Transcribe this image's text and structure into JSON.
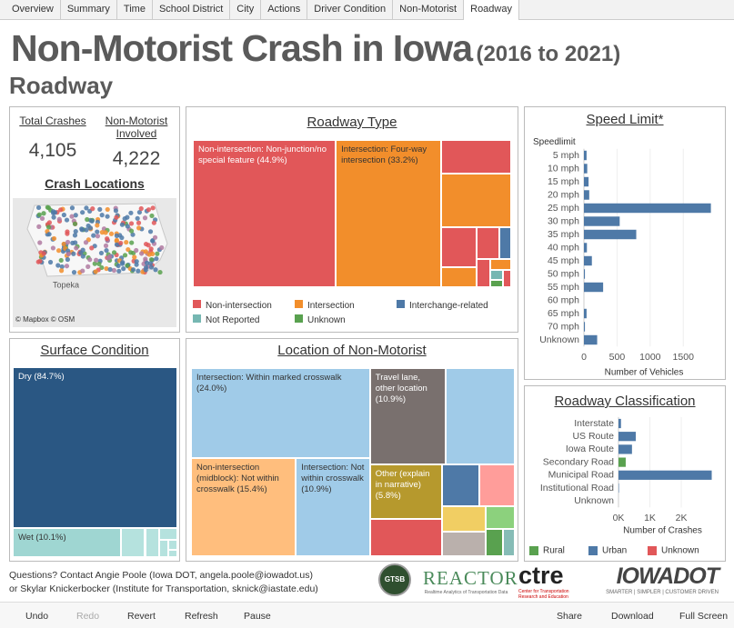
{
  "tabs": [
    "Overview",
    "Summary",
    "Time",
    "School District",
    "City",
    "Actions",
    "Driver Condition",
    "Non-Motorist",
    "Roadway"
  ],
  "active_tab": 8,
  "header": {
    "title": "Non-Motorist Crash in Iowa",
    "subtitle": "(2016 to 2021)",
    "section": "Roadway"
  },
  "kpis": [
    {
      "label": "Total Crashes",
      "value": "4,105"
    },
    {
      "label": "Non-Motorist Involved",
      "value": "4,222"
    }
  ],
  "map": {
    "title": "Crash Locations",
    "credit": "© Mapbox © OSM",
    "place": "Topeka"
  },
  "chart_data": [
    {
      "type": "treemap",
      "title": "Roadway Type",
      "cells": [
        {
          "label": "Non-intersection: Non-junction/no special feature (44.9%)",
          "value": 44.9,
          "color": "#e15759"
        },
        {
          "label": "Intersection: Four-way intersection (33.2%)",
          "value": 33.2,
          "color": "#f28e2b"
        },
        {
          "label": null,
          "value": 5.0,
          "color": "#e15759"
        },
        {
          "label": null,
          "value": 8.0,
          "color": "#f28e2b"
        },
        {
          "label": null,
          "value": 3.0,
          "color": "#e15759"
        },
        {
          "label": null,
          "value": 1.5,
          "color": "#f28e2b"
        },
        {
          "label": null,
          "value": 1.5,
          "color": "#e15759"
        },
        {
          "label": null,
          "value": 0.8,
          "color": "#4e79a7"
        },
        {
          "label": null,
          "value": 0.8,
          "color": "#e15759"
        },
        {
          "label": null,
          "value": 0.5,
          "color": "#f28e2b"
        },
        {
          "label": null,
          "value": 0.3,
          "color": "#76b7b2"
        },
        {
          "label": null,
          "value": 0.2,
          "color": "#59a14f"
        },
        {
          "label": null,
          "value": 0.3,
          "color": "#e15759"
        }
      ],
      "legend": [
        {
          "name": "Non-intersection",
          "color": "#e15759"
        },
        {
          "name": "Intersection",
          "color": "#f28e2b"
        },
        {
          "name": "Interchange-related",
          "color": "#4e79a7"
        },
        {
          "name": "Not Reported",
          "color": "#76b7b2"
        },
        {
          "name": "Unknown",
          "color": "#59a14f"
        }
      ]
    },
    {
      "type": "hbar",
      "title": "Speed Limit*",
      "category_header": "Speedlimit",
      "categories": [
        "5 mph",
        "10 mph",
        "15 mph",
        "20 mph",
        "25 mph",
        "30 mph",
        "35 mph",
        "40 mph",
        "45 mph",
        "50 mph",
        "55 mph",
        "60 mph",
        "65 mph",
        "70 mph",
        "Unknown"
      ],
      "values": [
        40,
        50,
        70,
        80,
        1917,
        540,
        790,
        45,
        120,
        15,
        290,
        0,
        40,
        15,
        200
      ],
      "color": "#4e79a7",
      "xlim": [
        0,
        1950
      ],
      "xticks": [
        0,
        500,
        1000,
        1500
      ],
      "xlabel": "Number of Vehicles"
    },
    {
      "type": "treemap",
      "title": "Surface Condition",
      "cells": [
        {
          "label": "Dry (84.7%)",
          "value": 84.7,
          "color": "#2a5783"
        },
        {
          "label": "Wet (10.1%)",
          "value": 10.1,
          "color": "#9fd6d2"
        },
        {
          "label": null,
          "value": 2.2,
          "color": "#b5e2de"
        },
        {
          "label": null,
          "value": 1.3,
          "color": "#b5e2de"
        },
        {
          "label": null,
          "value": 0.7,
          "color": "#b5e2de"
        },
        {
          "label": null,
          "value": 0.5,
          "color": "#b5e2de"
        },
        {
          "label": null,
          "value": 0.3,
          "color": "#b5e2de"
        },
        {
          "label": null,
          "value": 0.2,
          "color": "#b5e2de"
        }
      ]
    },
    {
      "type": "treemap",
      "title": "Location of Non-Motorist",
      "cells": [
        {
          "label": "Intersection: Within marked crosswalk (24.0%)",
          "value": 24.0,
          "color": "#a0cbe8"
        },
        {
          "label": "Non-intersection (midblock): Not within crosswalk (15.4%)",
          "value": 15.4,
          "color": "#ffbe7d"
        },
        {
          "label": "Intersection: Not within crosswalk (10.9%)",
          "value": 10.9,
          "color": "#a0cbe8"
        },
        {
          "label": "Travel lane, other location (10.9%)",
          "value": 10.9,
          "color": "#79706e"
        },
        {
          "label": null,
          "value": 10.0,
          "color": "#a0cbe8"
        },
        {
          "label": "Other (explain in narrative) (5.8%)",
          "value": 5.8,
          "color": "#b6992d"
        },
        {
          "label": null,
          "value": 4.0,
          "color": "#e15759"
        },
        {
          "label": null,
          "value": 2.3,
          "color": "#4e79a7"
        },
        {
          "label": null,
          "value": 2.2,
          "color": "#ff9d9a"
        },
        {
          "label": null,
          "value": 1.7,
          "color": "#f1ce63"
        },
        {
          "label": null,
          "value": 1.6,
          "color": "#bab0ac"
        },
        {
          "label": null,
          "value": 1.0,
          "color": "#8cd17d"
        },
        {
          "label": null,
          "value": 0.7,
          "color": "#59a14f"
        },
        {
          "label": null,
          "value": 0.5,
          "color": "#86bcb6"
        }
      ]
    },
    {
      "type": "stacked_hbar",
      "title": "Roadway Classification",
      "categories": [
        "Interstate",
        "US Route",
        "Iowa Route",
        "Secondary Road",
        "Municipal Road",
        "Institutional Road",
        "Unknown"
      ],
      "series": [
        {
          "name": "Rural",
          "color": "#59a14f",
          "values": [
            0,
            0,
            0,
            230,
            0,
            0,
            0
          ]
        },
        {
          "name": "Urban",
          "color": "#4e79a7",
          "values": [
            80,
            550,
            430,
            0,
            2970,
            15,
            0
          ]
        },
        {
          "name": "Unknown",
          "color": "#e15759",
          "values": [
            0,
            0,
            0,
            0,
            0,
            0,
            0
          ]
        }
      ],
      "xlim": [
        0,
        3100
      ],
      "xticks": [
        {
          "value": 0,
          "label": "0K"
        },
        {
          "value": 1000,
          "label": "1K"
        },
        {
          "value": 2000,
          "label": "2K"
        }
      ],
      "xlabel": "Number of Crashes",
      "legend": "bottom"
    }
  ],
  "footer": {
    "contact": [
      "Questions? Contact Angie Poole (Iowa DOT, angela.poole@iowadot.us)",
      "or Skylar Knickerbocker (Institute for Transportation, sknick@iastate.edu)"
    ],
    "logos": [
      {
        "name": "GTSB"
      },
      {
        "name": "REACTOR",
        "tagline": "Realtime Analytics of Transportation Data"
      },
      {
        "name": "ctre",
        "tagline": "Center for Transportation Research and Education"
      },
      {
        "name": "IOWADOT",
        "tagline": "SMARTER | SIMPLER | CUSTOMER DRIVEN"
      }
    ]
  },
  "toolbar": [
    "Undo",
    "Redo",
    "Revert",
    "Refresh",
    "Pause",
    "Share",
    "Download",
    "Full Screen"
  ]
}
